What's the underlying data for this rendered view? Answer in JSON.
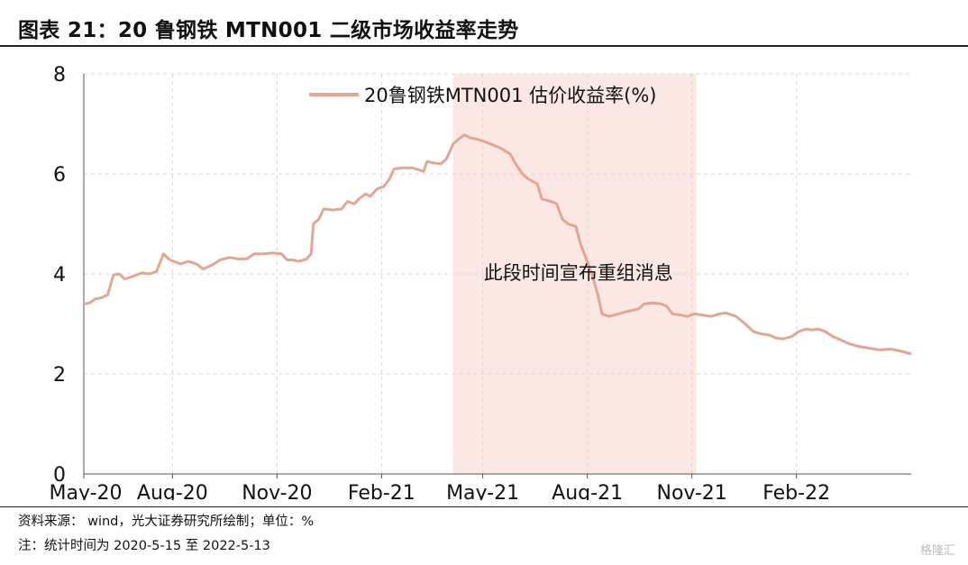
{
  "header": {
    "title": "图表 21：20 鲁钢铁 MTN001 二级市场收益率走势"
  },
  "footer": {
    "source": "资料来源： wind，光大证券研究所绘制；单位：%",
    "note": "注：统计时间为 2020-5-15 至 2022-5-13"
  },
  "watermark": "格隆汇",
  "colors": {
    "line": "#e3a695",
    "shade": "#fbe8e4",
    "grid": "#d9d9d9",
    "axis": "#555555"
  },
  "chart_data": {
    "type": "line",
    "title": "",
    "xlabel": "",
    "ylabel": "",
    "ylim": [
      0,
      8
    ],
    "yticks": [
      "0",
      "2",
      "4",
      "6",
      "8"
    ],
    "xlim": [
      "2020-05-15",
      "2022-05-13"
    ],
    "xticks": [
      {
        "label": "May-20",
        "date": "2020-05-01"
      },
      {
        "label": "Aug-20",
        "date": "2020-08-01"
      },
      {
        "label": "Nov-20",
        "date": "2020-11-01"
      },
      {
        "label": "Feb-21",
        "date": "2021-02-01"
      },
      {
        "label": "May-21",
        "date": "2021-05-01"
      },
      {
        "label": "Aug-21",
        "date": "2021-08-01"
      },
      {
        "label": "Nov-21",
        "date": "2021-11-01"
      },
      {
        "label": "Feb-22",
        "date": "2022-02-01"
      }
    ],
    "grid": "vertical and horizontal dashed",
    "legend_position": "top-center",
    "shaded_region": {
      "start": "2021-04-05",
      "end": "2021-11-05",
      "label": "此段时间宣布重组消息"
    },
    "series": [
      {
        "name": "20鲁钢铁MTN001 估价收益率(%)",
        "points": [
          [
            "2020-05-15",
            3.4
          ],
          [
            "2020-05-20",
            3.42
          ],
          [
            "2020-05-25",
            3.5
          ],
          [
            "2020-05-30",
            3.52
          ],
          [
            "2020-06-05",
            3.58
          ],
          [
            "2020-06-10",
            3.98
          ],
          [
            "2020-06-15",
            4.0
          ],
          [
            "2020-06-20",
            3.9
          ],
          [
            "2020-06-27",
            3.95
          ],
          [
            "2020-07-05",
            4.02
          ],
          [
            "2020-07-12",
            4.0
          ],
          [
            "2020-07-18",
            4.05
          ],
          [
            "2020-07-24",
            4.4
          ],
          [
            "2020-07-30",
            4.28
          ],
          [
            "2020-08-08",
            4.2
          ],
          [
            "2020-08-15",
            4.25
          ],
          [
            "2020-08-22",
            4.2
          ],
          [
            "2020-08-28",
            4.1
          ],
          [
            "2020-09-05",
            4.18
          ],
          [
            "2020-09-12",
            4.28
          ],
          [
            "2020-09-20",
            4.33
          ],
          [
            "2020-09-28",
            4.3
          ],
          [
            "2020-10-05",
            4.3
          ],
          [
            "2020-10-12",
            4.4
          ],
          [
            "2020-10-20",
            4.4
          ],
          [
            "2020-10-28",
            4.42
          ],
          [
            "2020-11-05",
            4.4
          ],
          [
            "2020-11-10",
            4.28
          ],
          [
            "2020-11-15",
            4.28
          ],
          [
            "2020-11-20",
            4.25
          ],
          [
            "2020-11-27",
            4.3
          ],
          [
            "2020-12-01",
            4.4
          ],
          [
            "2020-12-03",
            5.0
          ],
          [
            "2020-12-08",
            5.1
          ],
          [
            "2020-12-12",
            5.3
          ],
          [
            "2020-12-20",
            5.28
          ],
          [
            "2020-12-28",
            5.3
          ],
          [
            "2021-01-02",
            5.45
          ],
          [
            "2021-01-08",
            5.4
          ],
          [
            "2021-01-12",
            5.5
          ],
          [
            "2021-01-18",
            5.6
          ],
          [
            "2021-01-22",
            5.55
          ],
          [
            "2021-01-28",
            5.7
          ],
          [
            "2021-02-03",
            5.75
          ],
          [
            "2021-02-08",
            5.9
          ],
          [
            "2021-02-12",
            6.1
          ],
          [
            "2021-02-20",
            6.12
          ],
          [
            "2021-02-28",
            6.12
          ],
          [
            "2021-03-06",
            6.08
          ],
          [
            "2021-03-10",
            6.05
          ],
          [
            "2021-03-13",
            6.25
          ],
          [
            "2021-03-18",
            6.22
          ],
          [
            "2021-03-25",
            6.2
          ],
          [
            "2021-03-30",
            6.3
          ],
          [
            "2021-04-05",
            6.6
          ],
          [
            "2021-04-10",
            6.7
          ],
          [
            "2021-04-15",
            6.78
          ],
          [
            "2021-04-20",
            6.72
          ],
          [
            "2021-04-25",
            6.7
          ],
          [
            "2021-05-02",
            6.65
          ],
          [
            "2021-05-10",
            6.58
          ],
          [
            "2021-05-18",
            6.5
          ],
          [
            "2021-05-25",
            6.4
          ],
          [
            "2021-05-30",
            6.2
          ],
          [
            "2021-06-05",
            6.0
          ],
          [
            "2021-06-10",
            5.9
          ],
          [
            "2021-06-18",
            5.8
          ],
          [
            "2021-06-22",
            5.5
          ],
          [
            "2021-06-30",
            5.45
          ],
          [
            "2021-07-05",
            5.4
          ],
          [
            "2021-07-10",
            5.1
          ],
          [
            "2021-07-15",
            5.0
          ],
          [
            "2021-07-22",
            4.95
          ],
          [
            "2021-07-26",
            4.6
          ],
          [
            "2021-08-05",
            4.0
          ],
          [
            "2021-08-10",
            3.6
          ],
          [
            "2021-08-14",
            3.2
          ],
          [
            "2021-08-20",
            3.15
          ],
          [
            "2021-08-28",
            3.2
          ],
          [
            "2021-09-05",
            3.25
          ],
          [
            "2021-09-15",
            3.3
          ],
          [
            "2021-09-20",
            3.4
          ],
          [
            "2021-09-28",
            3.42
          ],
          [
            "2021-10-05",
            3.4
          ],
          [
            "2021-10-10",
            3.35
          ],
          [
            "2021-10-15",
            3.2
          ],
          [
            "2021-10-22",
            3.18
          ],
          [
            "2021-10-28",
            3.15
          ],
          [
            "2021-11-03",
            3.2
          ],
          [
            "2021-11-10",
            3.18
          ],
          [
            "2021-11-18",
            3.15
          ],
          [
            "2021-11-25",
            3.2
          ],
          [
            "2021-12-01",
            3.22
          ],
          [
            "2021-12-10",
            3.15
          ],
          [
            "2021-12-18",
            3.0
          ],
          [
            "2021-12-25",
            2.85
          ],
          [
            "2022-01-01",
            2.8
          ],
          [
            "2022-01-08",
            2.78
          ],
          [
            "2022-01-14",
            2.72
          ],
          [
            "2022-01-20",
            2.7
          ],
          [
            "2022-01-28",
            2.75
          ],
          [
            "2022-02-03",
            2.85
          ],
          [
            "2022-02-10",
            2.9
          ],
          [
            "2022-02-15",
            2.88
          ],
          [
            "2022-02-20",
            2.9
          ],
          [
            "2022-02-26",
            2.85
          ],
          [
            "2022-03-05",
            2.75
          ],
          [
            "2022-03-12",
            2.68
          ],
          [
            "2022-03-20",
            2.6
          ],
          [
            "2022-03-28",
            2.55
          ],
          [
            "2022-04-05",
            2.52
          ],
          [
            "2022-04-15",
            2.48
          ],
          [
            "2022-04-25",
            2.5
          ],
          [
            "2022-05-05",
            2.45
          ],
          [
            "2022-05-13",
            2.4
          ]
        ]
      }
    ]
  }
}
